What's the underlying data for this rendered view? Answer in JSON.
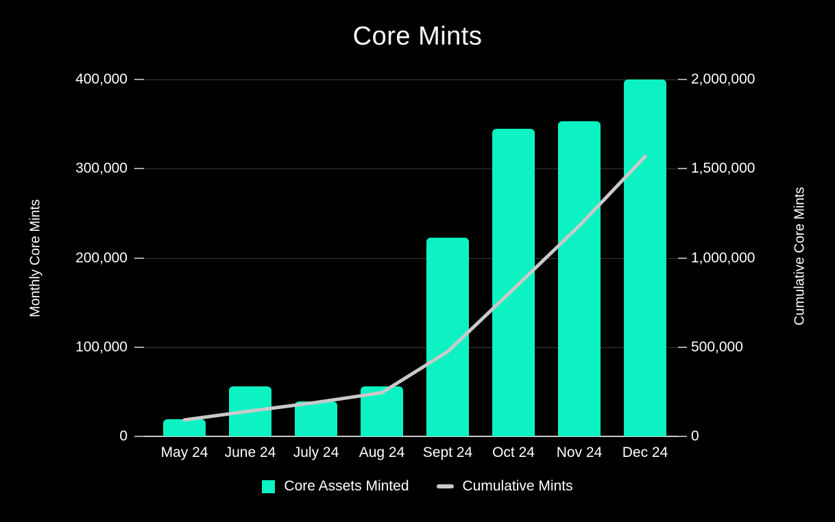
{
  "title": "Core Mints",
  "left_axis": {
    "label": "Monthly Core Mints",
    "ticks": [
      "400,000",
      "300,000",
      "200,000",
      "100,000",
      "0"
    ]
  },
  "right_axis": {
    "label": "Cumulative Core Mints",
    "ticks": [
      "2,000,000",
      "1,500,000",
      "1,000,000",
      "500,000",
      "0"
    ]
  },
  "legend": {
    "items": [
      {
        "label": "Core Assets Minted",
        "swatch": "square"
      },
      {
        "label": "Cumulative Mints",
        "swatch": "dash"
      }
    ]
  },
  "chart_data": {
    "type": "bar",
    "categories": [
      "May 24",
      "June 24",
      "July 24",
      "Aug 24",
      "Sept 24",
      "Oct 24",
      "Nov 24",
      "Dec 24"
    ],
    "series": [
      {
        "name": "Core Assets Minted",
        "type": "bar",
        "axis": "left",
        "values": [
          19000,
          56000,
          39000,
          56000,
          223000,
          345000,
          353000,
          400000
        ]
      },
      {
        "name": "Cumulative Mints",
        "type": "line",
        "axis": "right",
        "values": [
          92000,
          142000,
          190000,
          245000,
          475000,
          825000,
          1180000,
          1568000
        ]
      }
    ],
    "title": "Core Mints",
    "xlabel": "",
    "ylabel_left": "Monthly Core Mints",
    "ylabel_right": "Cumulative Core Mints",
    "left_ylim": [
      0,
      400000
    ],
    "right_ylim": [
      0,
      2000000
    ],
    "grid": true,
    "legend_position": "bottom"
  },
  "colors": {
    "background": "#000000",
    "bar": "#0cf2c3",
    "line": "#c9c9c9",
    "grid": "#3a3a3a",
    "axis": "#cccccc",
    "text": "#ffffff"
  }
}
